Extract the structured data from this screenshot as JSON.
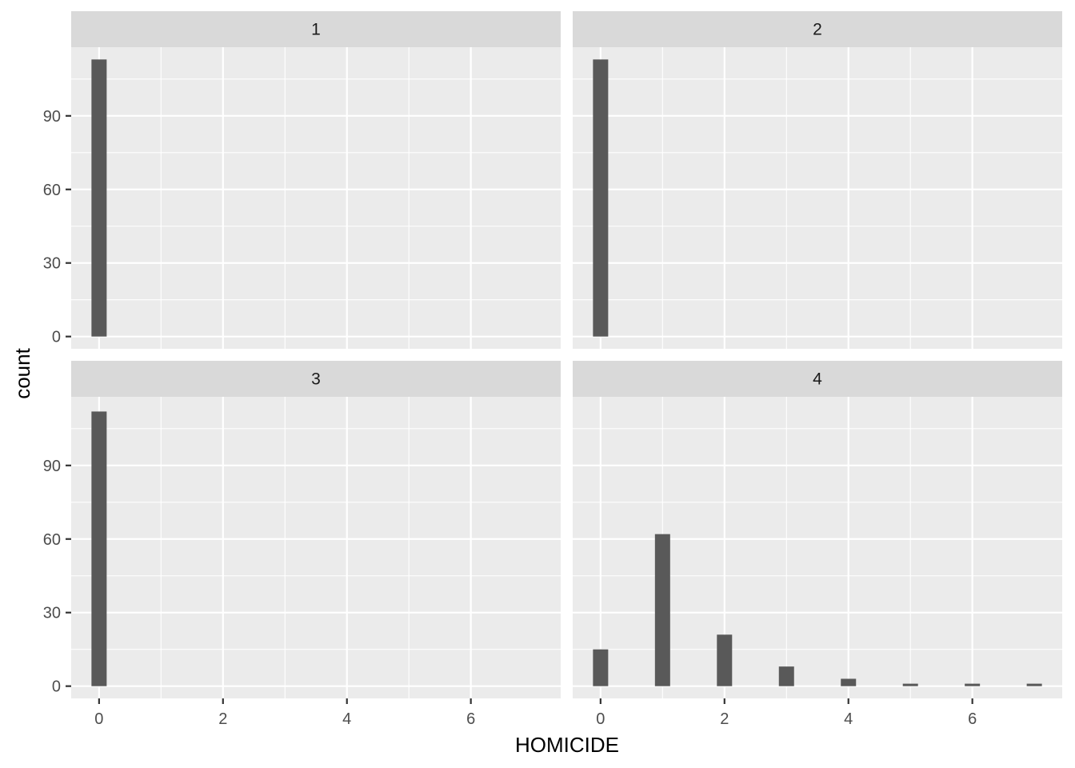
{
  "chart_data": {
    "type": "bar",
    "facet_layout": "2x2 grid",
    "xlabel": "HOMICIDE",
    "ylabel": "count",
    "xlim": [
      -0.45,
      7.45
    ],
    "ylim": [
      -5,
      118
    ],
    "x_ticks": [
      0,
      2,
      4,
      6
    ],
    "y_ticks": [
      0,
      30,
      60,
      90
    ],
    "grid": true,
    "legend": "none",
    "bar_color": "#595959",
    "panel_color": "#ebebeb",
    "strip_color": "#d9d9d9",
    "facets": [
      {
        "label": "1",
        "bars": [
          {
            "x": 0,
            "count": 113
          }
        ]
      },
      {
        "label": "2",
        "bars": [
          {
            "x": 0,
            "count": 113
          }
        ]
      },
      {
        "label": "3",
        "bars": [
          {
            "x": 0,
            "count": 112
          }
        ]
      },
      {
        "label": "4",
        "bars": [
          {
            "x": 0,
            "count": 15
          },
          {
            "x": 1,
            "count": 62
          },
          {
            "x": 2,
            "count": 21
          },
          {
            "x": 3,
            "count": 8
          },
          {
            "x": 4,
            "count": 3
          },
          {
            "x": 5,
            "count": 1
          },
          {
            "x": 6,
            "count": 1
          },
          {
            "x": 7,
            "count": 1
          }
        ]
      }
    ]
  }
}
